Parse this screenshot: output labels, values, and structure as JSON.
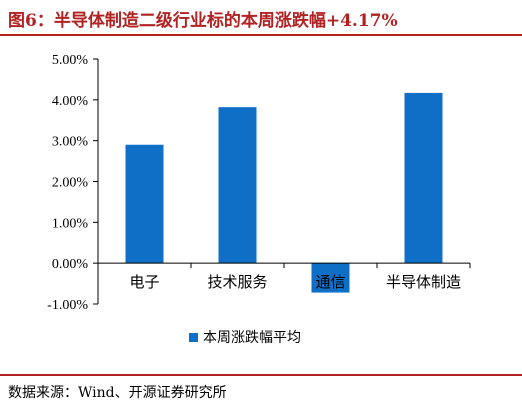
{
  "header": {
    "title": "图6：半导体制造二级行业标的本周涨跌幅+4.17%"
  },
  "footer": {
    "source": "数据来源：Wind、开源证券研究所"
  },
  "colors": {
    "bar": "#0f6fc6",
    "accent": "#b22222"
  },
  "chart_data": {
    "type": "bar",
    "categories": [
      "电子",
      "技术服务",
      "通信",
      "半导体制造"
    ],
    "series": [
      {
        "name": "本周涨跌幅平均",
        "values": [
          2.9,
          3.82,
          -0.72,
          4.17
        ]
      }
    ],
    "ylim": [
      -1.0,
      5.0
    ],
    "yticks": [
      5.0,
      4.0,
      3.0,
      2.0,
      1.0,
      0.0,
      -1.0
    ],
    "ytick_labels": [
      "5.00%",
      "4.00%",
      "3.00%",
      "2.00%",
      "1.00%",
      "0.00%",
      "-1.00%"
    ],
    "grid": false,
    "legend": "bottom"
  }
}
